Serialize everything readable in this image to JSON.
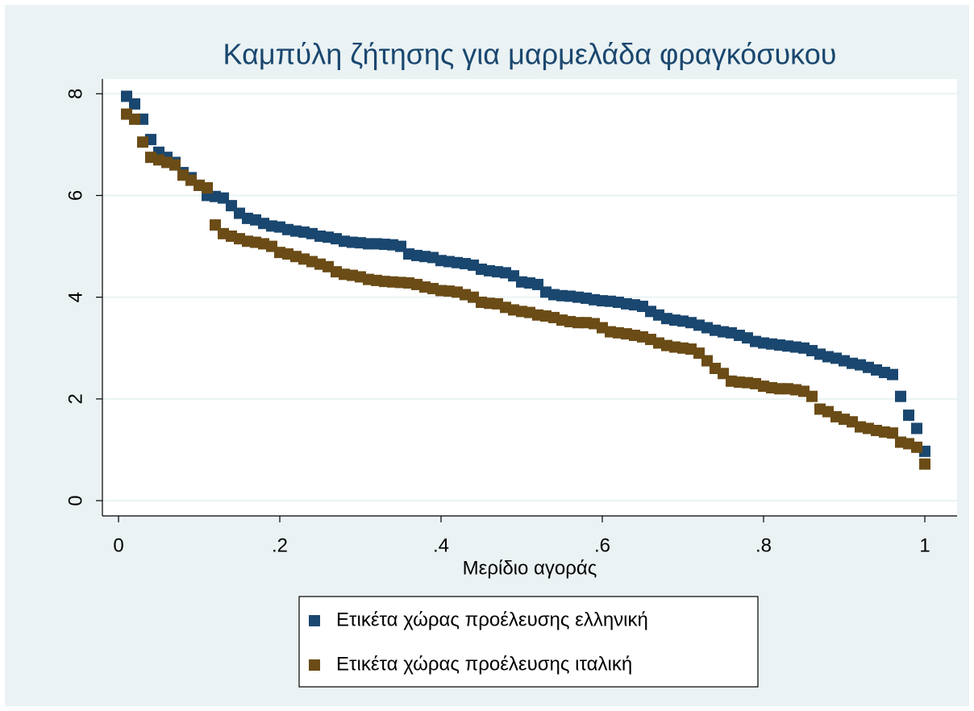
{
  "chart_data": {
    "type": "scatter",
    "title": "Καμπύλη ζήτησης για μαρμελάδα φραγκόσυκου",
    "x_label": "Μερίδιο αγοράς",
    "x": [
      0.01,
      0.02,
      0.03,
      0.04,
      0.05,
      0.06,
      0.07,
      0.08,
      0.09,
      0.1,
      0.11,
      0.12,
      0.13,
      0.14,
      0.15,
      0.16,
      0.17,
      0.18,
      0.19,
      0.2,
      0.21,
      0.22,
      0.23,
      0.24,
      0.25,
      0.26,
      0.27,
      0.28,
      0.29,
      0.3,
      0.31,
      0.32,
      0.33,
      0.34,
      0.35,
      0.36,
      0.37,
      0.38,
      0.39,
      0.4,
      0.41,
      0.42,
      0.43,
      0.44,
      0.45,
      0.46,
      0.47,
      0.48,
      0.49,
      0.5,
      0.51,
      0.52,
      0.53,
      0.54,
      0.55,
      0.56,
      0.57,
      0.58,
      0.59,
      0.6,
      0.61,
      0.62,
      0.63,
      0.64,
      0.65,
      0.66,
      0.67,
      0.68,
      0.69,
      0.7,
      0.71,
      0.72,
      0.73,
      0.74,
      0.75,
      0.76,
      0.77,
      0.78,
      0.79,
      0.8,
      0.81,
      0.82,
      0.83,
      0.84,
      0.85,
      0.86,
      0.87,
      0.88,
      0.89,
      0.9,
      0.91,
      0.92,
      0.93,
      0.94,
      0.95,
      0.96,
      0.97,
      0.98,
      0.99,
      1.0
    ],
    "series": [
      {
        "name": "Ετικέτα χώρας προέλευσης ελληνική",
        "color": "#1a476f",
        "values": [
          7.95,
          7.8,
          7.5,
          7.1,
          6.85,
          6.75,
          6.65,
          6.45,
          6.35,
          6.2,
          6.0,
          5.98,
          5.95,
          5.8,
          5.65,
          5.55,
          5.52,
          5.45,
          5.4,
          5.38,
          5.33,
          5.3,
          5.28,
          5.25,
          5.2,
          5.18,
          5.15,
          5.1,
          5.08,
          5.07,
          5.05,
          5.05,
          5.04,
          5.03,
          5.0,
          4.85,
          4.82,
          4.8,
          4.78,
          4.72,
          4.7,
          4.68,
          4.66,
          4.63,
          4.55,
          4.52,
          4.5,
          4.48,
          4.42,
          4.3,
          4.28,
          4.25,
          4.1,
          4.05,
          4.03,
          4.02,
          4.0,
          3.98,
          3.95,
          3.93,
          3.92,
          3.9,
          3.87,
          3.85,
          3.82,
          3.72,
          3.65,
          3.58,
          3.55,
          3.53,
          3.5,
          3.45,
          3.4,
          3.35,
          3.32,
          3.3,
          3.25,
          3.2,
          3.13,
          3.1,
          3.08,
          3.06,
          3.04,
          3.02,
          3.0,
          2.95,
          2.88,
          2.83,
          2.8,
          2.75,
          2.7,
          2.67,
          2.62,
          2.57,
          2.52,
          2.48,
          2.05,
          1.68,
          1.42,
          0.97
        ]
      },
      {
        "name": "Ετικέτα χώρας προέλευσης ιταλική",
        "color": "#6b4c16",
        "values": [
          7.6,
          7.5,
          7.05,
          6.75,
          6.7,
          6.65,
          6.6,
          6.4,
          6.3,
          6.2,
          6.15,
          5.42,
          5.25,
          5.2,
          5.15,
          5.1,
          5.08,
          5.05,
          5.0,
          4.88,
          4.85,
          4.8,
          4.75,
          4.7,
          4.65,
          4.6,
          4.5,
          4.45,
          4.43,
          4.4,
          4.35,
          4.33,
          4.31,
          4.3,
          4.29,
          4.28,
          4.25,
          4.2,
          4.17,
          4.13,
          4.12,
          4.1,
          4.05,
          4.0,
          3.9,
          3.88,
          3.87,
          3.8,
          3.75,
          3.72,
          3.7,
          3.65,
          3.63,
          3.6,
          3.55,
          3.52,
          3.5,
          3.5,
          3.48,
          3.4,
          3.32,
          3.3,
          3.28,
          3.25,
          3.22,
          3.17,
          3.1,
          3.05,
          3.02,
          3.0,
          2.98,
          2.9,
          2.75,
          2.6,
          2.5,
          2.35,
          2.33,
          2.32,
          2.3,
          2.25,
          2.22,
          2.2,
          2.2,
          2.18,
          2.15,
          2.05,
          1.8,
          1.75,
          1.65,
          1.6,
          1.55,
          1.45,
          1.42,
          1.38,
          1.35,
          1.33,
          1.15,
          1.12,
          1.05,
          0.72
        ]
      }
    ],
    "xlim": [
      -0.02,
      1.04
    ],
    "ylim": [
      -0.3,
      8.29
    ],
    "xticks": [
      0,
      {
        "value": 0.2,
        "label": ".2"
      },
      {
        "value": 0.4,
        "label": ".4"
      },
      {
        "value": 0.6,
        "label": ".6"
      },
      {
        "value": 0.8,
        "label": ".8"
      },
      1
    ],
    "yticks": [
      0,
      2,
      4,
      6,
      8
    ],
    "grid": true,
    "legend": "bottom"
  }
}
